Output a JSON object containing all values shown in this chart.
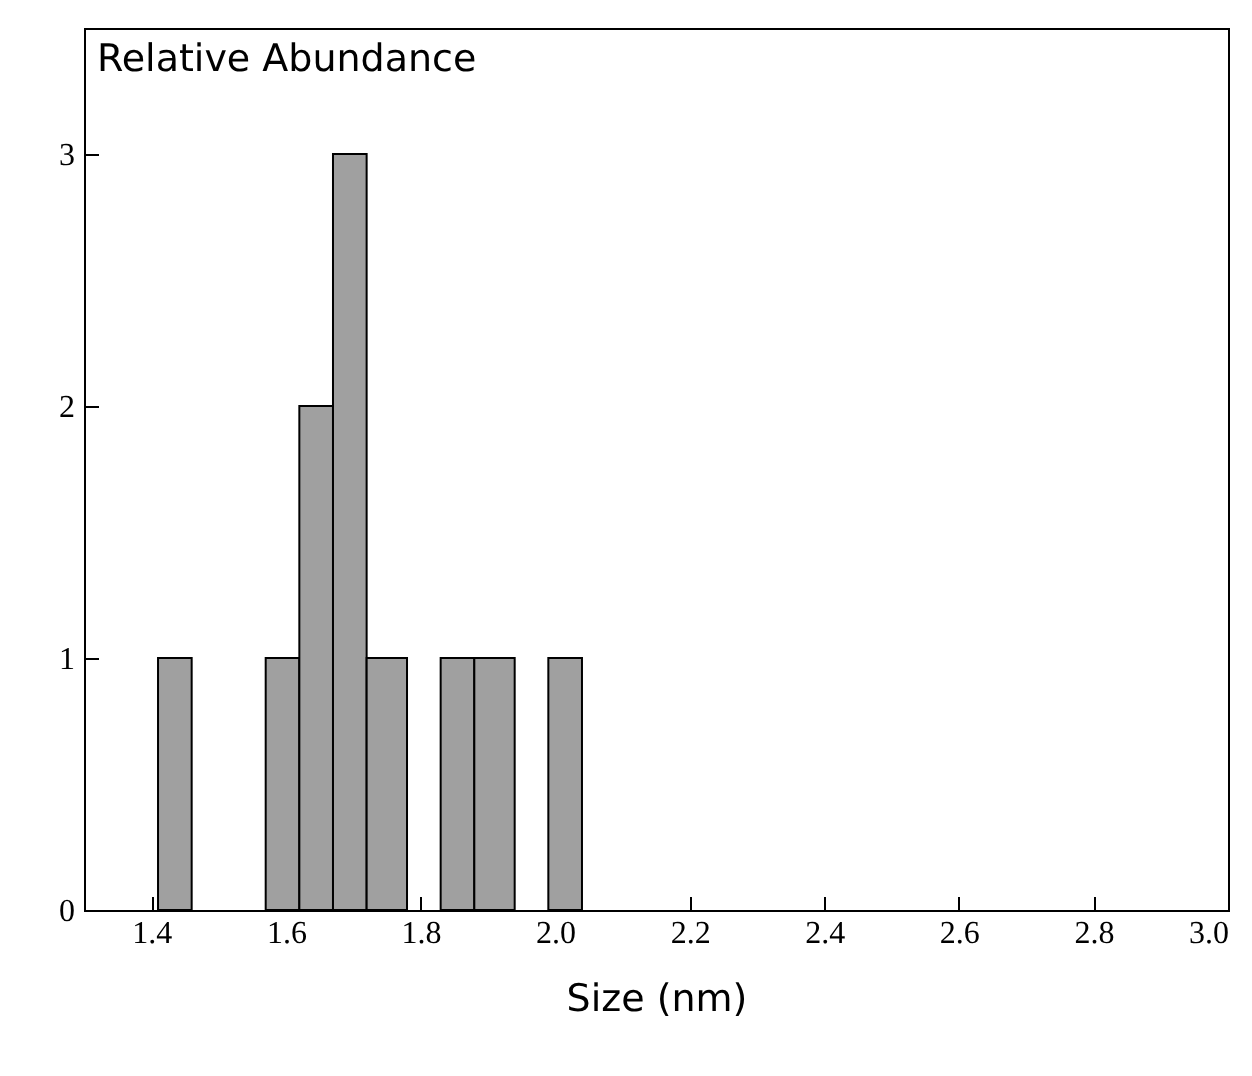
{
  "chart_data": {
    "type": "histogram",
    "ylabel": "Relative Abundance",
    "xlabel": "Size (nm)",
    "bins": [
      1.41,
      1.46,
      1.57,
      1.62,
      1.67,
      1.72,
      1.78,
      1.83,
      1.88,
      1.94,
      1.99,
      2.04
    ],
    "values": [
      1,
      0,
      1,
      2,
      3,
      1,
      0,
      1,
      1,
      0,
      1
    ],
    "color": "#a0a0a0",
    "xlim": [
      1.3,
      3.0
    ],
    "xticks": [
      1.4,
      1.6,
      1.8,
      {
        "value": 2,
        "label": "2.0"
      },
      2.2,
      2.4,
      2.6,
      2.8,
      {
        "value": 3,
        "label": "3.0"
      }
    ],
    "ylim": [
      0,
      3.5
    ],
    "yticks": [
      0,
      1,
      2,
      3
    ],
    "grid": false
  }
}
